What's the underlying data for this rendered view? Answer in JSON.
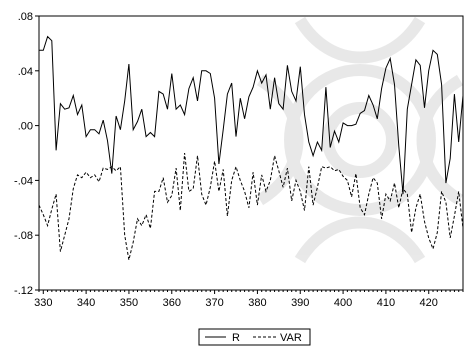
{
  "chart_data": {
    "type": "line",
    "title": "",
    "xlabel": "",
    "ylabel": "",
    "xlim": [
      329,
      428
    ],
    "ylim": [
      -0.12,
      0.08
    ],
    "x_ticks": [
      330,
      340,
      350,
      360,
      370,
      380,
      390,
      400,
      410,
      420
    ],
    "x_tick_labels": [
      "330",
      "340",
      "350",
      "360",
      "370",
      "380",
      "390",
      "400",
      "410",
      "420"
    ],
    "y_ticks": [
      0.08,
      0.04,
      0.0,
      -0.04,
      -0.08,
      -0.12
    ],
    "y_tick_labels": [
      ".08",
      ".04",
      ".00",
      "-.04",
      "-.08",
      "-.12"
    ],
    "grid": false,
    "legend_position": "bottom-center",
    "x": [
      329,
      330,
      331,
      332,
      333,
      334,
      335,
      336,
      337,
      338,
      339,
      340,
      341,
      342,
      343,
      344,
      345,
      346,
      347,
      348,
      349,
      350,
      351,
      352,
      353,
      354,
      355,
      356,
      357,
      358,
      359,
      360,
      361,
      362,
      363,
      364,
      365,
      366,
      367,
      368,
      369,
      370,
      371,
      372,
      373,
      374,
      375,
      376,
      377,
      378,
      379,
      380,
      381,
      382,
      383,
      384,
      385,
      386,
      387,
      388,
      389,
      390,
      391,
      392,
      393,
      394,
      395,
      396,
      397,
      398,
      399,
      400,
      401,
      402,
      403,
      404,
      405,
      406,
      407,
      408,
      409,
      410,
      411,
      412,
      413,
      414,
      415,
      416,
      417,
      418,
      419,
      420,
      421,
      422,
      423,
      424,
      425,
      426,
      427,
      428
    ],
    "series": [
      {
        "name": "R",
        "style": "solid",
        "color": "#000000",
        "values": [
          0.055,
          0.055,
          0.065,
          0.062,
          -0.018,
          0.016,
          0.012,
          0.013,
          0.022,
          0.008,
          0.015,
          -0.008,
          -0.003,
          -0.003,
          -0.006,
          0.004,
          -0.011,
          -0.035,
          0.007,
          -0.003,
          0.018,
          0.045,
          -0.003,
          0.003,
          0.012,
          -0.008,
          -0.005,
          -0.008,
          0.025,
          0.023,
          0.012,
          0.038,
          0.012,
          0.015,
          0.008,
          0.027,
          0.035,
          0.018,
          0.04,
          0.04,
          0.038,
          0.02,
          -0.028,
          -0.003,
          0.023,
          0.031,
          -0.008,
          0.02,
          0.005,
          0.021,
          0.028,
          0.04,
          0.031,
          0.037,
          0.012,
          0.035,
          0.016,
          0.012,
          0.044,
          0.025,
          0.018,
          0.043,
          0.008,
          -0.012,
          -0.022,
          -0.012,
          -0.018,
          0.028,
          -0.016,
          -0.004,
          -0.012,
          0.002,
          0.0,
          0.0,
          0.001,
          0.009,
          0.011,
          0.022,
          0.015,
          0.005,
          0.027,
          0.042,
          0.049,
          0.03,
          -0.015,
          -0.05,
          0.012,
          0.03,
          0.048,
          0.044,
          0.013,
          0.04,
          0.055,
          0.052,
          0.03,
          -0.042,
          -0.024,
          0.023,
          -0.012,
          0.022
        ]
      },
      {
        "name": "VAR",
        "style": "dashed",
        "color": "#000000",
        "values": [
          -0.058,
          -0.065,
          -0.073,
          -0.061,
          -0.05,
          -0.092,
          -0.08,
          -0.068,
          -0.046,
          -0.036,
          -0.038,
          -0.034,
          -0.038,
          -0.036,
          -0.041,
          -0.031,
          -0.032,
          -0.03,
          -0.033,
          -0.03,
          -0.08,
          -0.098,
          -0.085,
          -0.068,
          -0.073,
          -0.065,
          -0.075,
          -0.048,
          -0.048,
          -0.038,
          -0.056,
          -0.051,
          -0.031,
          -0.062,
          -0.02,
          -0.048,
          -0.046,
          -0.022,
          -0.05,
          -0.058,
          -0.045,
          -0.026,
          -0.048,
          -0.032,
          -0.066,
          -0.04,
          -0.03,
          -0.04,
          -0.048,
          -0.06,
          -0.034,
          -0.058,
          -0.036,
          -0.048,
          -0.04,
          -0.022,
          -0.033,
          -0.045,
          -0.031,
          -0.055,
          -0.04,
          -0.048,
          -0.062,
          -0.03,
          -0.058,
          -0.045,
          -0.03,
          -0.031,
          -0.03,
          -0.033,
          -0.032,
          -0.037,
          -0.04,
          -0.052,
          -0.035,
          -0.06,
          -0.065,
          -0.05,
          -0.038,
          -0.042,
          -0.068,
          -0.05,
          -0.055,
          -0.042,
          -0.06,
          -0.046,
          -0.05,
          -0.078,
          -0.06,
          -0.05,
          -0.07,
          -0.082,
          -0.09,
          -0.078,
          -0.048,
          -0.056,
          -0.082,
          -0.066,
          -0.048,
          -0.075
        ]
      }
    ]
  }
}
